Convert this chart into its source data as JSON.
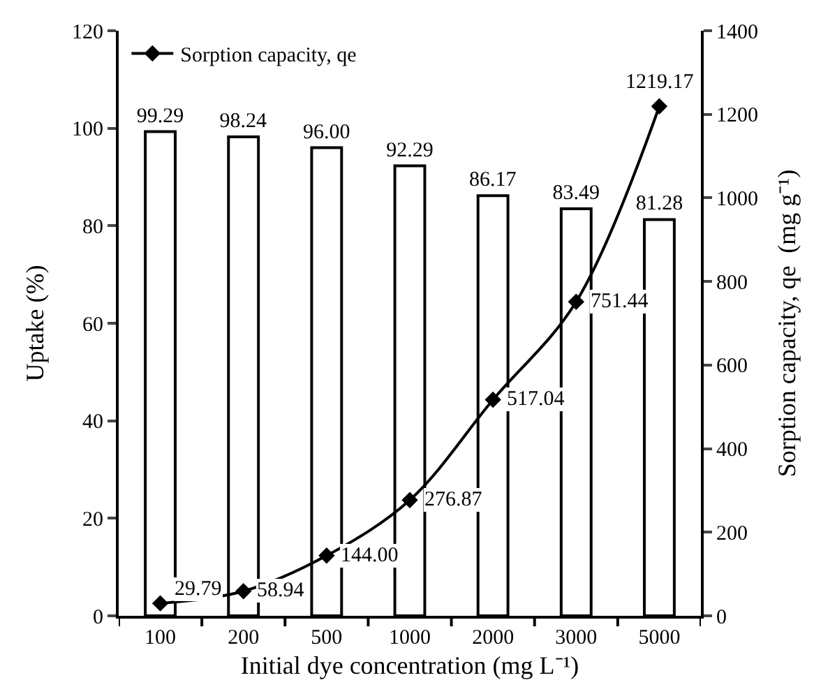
{
  "chart_data": {
    "type": "bar",
    "xlabel": "Initial dye concentration (mg L⁻¹)",
    "ylabel": "Uptake (%)",
    "y2label": "Sorption capacity, qe  (mg g⁻¹)",
    "categories": [
      "100",
      "200",
      "500",
      "1000",
      "2000",
      "3000",
      "5000"
    ],
    "series": [
      {
        "color": "#ffffff",
        "values": [
          99.29,
          98.24,
          96.0,
          92.29,
          86.17,
          83.49,
          81.28
        ],
        "value_labels": [
          "99.29",
          "98.24",
          "96.00",
          "92.29",
          "86.17",
          "83.49",
          "81.28"
        ]
      },
      {
        "type": "line",
        "name": "Sorption capacity, qe",
        "axis": "y2",
        "color": "#000000",
        "marker": "diamond",
        "values": [
          29.79,
          58.94,
          144.0,
          276.87,
          517.04,
          751.44,
          1219.17
        ],
        "value_labels": [
          "29.79",
          "58.94",
          "144.00",
          "276.87",
          "517.04",
          "751.44",
          "1219.17"
        ]
      }
    ],
    "ylim": [
      0,
      120
    ],
    "yticks": [
      0,
      20,
      40,
      60,
      80,
      100,
      120
    ],
    "y2lim": [
      0,
      1400
    ],
    "y2ticks": [
      0,
      200,
      400,
      600,
      800,
      1000,
      1200,
      1400
    ],
    "legend": "top left"
  }
}
